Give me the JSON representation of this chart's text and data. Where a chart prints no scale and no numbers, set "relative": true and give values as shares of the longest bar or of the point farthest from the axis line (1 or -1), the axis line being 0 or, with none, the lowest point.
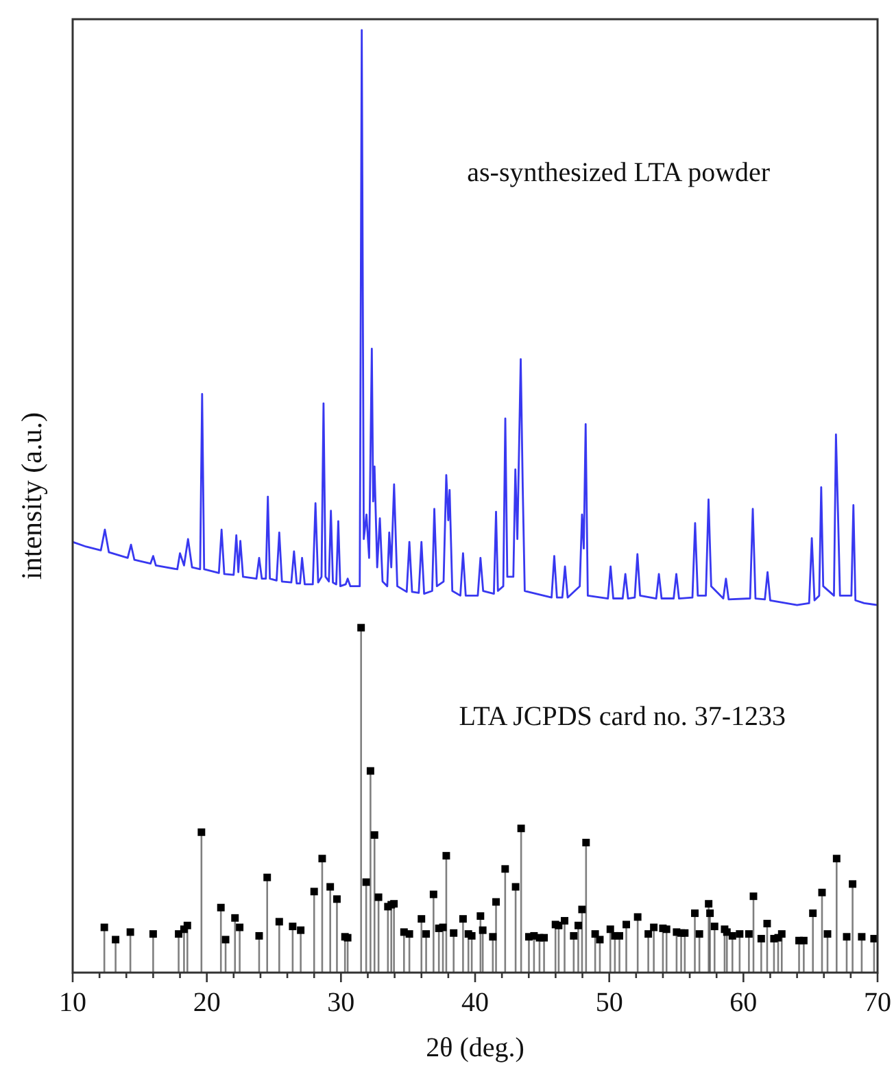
{
  "chart_data": {
    "type": "line",
    "relative": true,
    "xlabel": "2θ (deg.)",
    "ylabel": "intensity (a.u.)",
    "xlim": [
      10,
      70
    ],
    "tick_labels": "x",
    "annotations": [
      "as-synthesized LTA powder",
      "LTA JCPDS card no. 37-1233"
    ],
    "xticks": [
      10,
      {
        "value": 12,
        "label": null
      },
      {
        "value": 14,
        "label": null
      },
      {
        "value": 16,
        "label": null
      },
      {
        "value": 18,
        "label": null
      },
      20,
      {
        "value": 22,
        "label": null
      },
      {
        "value": 24,
        "label": null
      },
      {
        "value": 26,
        "label": null
      },
      {
        "value": 28,
        "label": null
      },
      30,
      {
        "value": 32,
        "label": null
      },
      {
        "value": 34,
        "label": null
      },
      {
        "value": 36,
        "label": null
      },
      {
        "value": 38,
        "label": null
      },
      40,
      {
        "value": 42,
        "label": null
      },
      {
        "value": 44,
        "label": null
      },
      {
        "value": 46,
        "label": null
      },
      {
        "value": 48,
        "label": null
      },
      50,
      {
        "value": 52,
        "label": null
      },
      {
        "value": 54,
        "label": null
      },
      {
        "value": 56,
        "label": null
      },
      {
        "value": 58,
        "label": null
      },
      60,
      {
        "value": 62,
        "label": null
      },
      {
        "value": 64,
        "label": null
      },
      {
        "value": 66,
        "label": null
      },
      {
        "value": 68,
        "label": null
      },
      70
    ],
    "series": [
      {
        "color": "#3838f0",
        "marker": "none",
        "x": [
          10,
          11,
          12.1,
          12.4,
          12.7,
          14.1,
          14.35,
          14.6,
          15.8,
          16.0,
          16.2,
          17.8,
          18.0,
          18.3,
          18.6,
          18.9,
          19.5,
          19.65,
          19.8,
          20.9,
          21.1,
          21.3,
          22.0,
          22.2,
          22.35,
          22.5,
          22.7,
          23.7,
          23.9,
          24.1,
          24.4,
          24.55,
          24.7,
          25.2,
          25.4,
          25.6,
          26.3,
          26.5,
          26.7,
          26.95,
          27.1,
          27.3,
          27.9,
          28.1,
          28.3,
          28.55,
          28.7,
          28.85,
          29.1,
          29.25,
          29.4,
          29.65,
          29.8,
          29.95,
          30.35,
          30.5,
          30.7,
          31.4,
          31.55,
          31.7,
          31.9,
          32.1,
          32.3,
          32.4,
          32.5,
          32.7,
          32.9,
          33.1,
          33.45,
          33.6,
          33.75,
          33.96,
          34.2,
          34.9,
          35.1,
          35.3,
          35.8,
          36.0,
          36.2,
          36.8,
          36.96,
          37.15,
          37.65,
          37.85,
          38.0,
          38.1,
          38.3,
          38.9,
          39.1,
          39.3,
          40.2,
          40.4,
          40.6,
          41.4,
          41.56,
          41.7,
          42.1,
          42.25,
          42.4,
          42.85,
          43.0,
          43.15,
          43.4,
          43.55,
          43.7,
          45.7,
          45.9,
          46.1,
          46.5,
          46.7,
          46.9,
          47.8,
          47.97,
          48.1,
          48.24,
          48.4,
          49.9,
          50.1,
          50.3,
          51.0,
          51.2,
          51.4,
          51.9,
          52.1,
          52.3,
          53.5,
          53.7,
          53.9,
          54.8,
          55.0,
          55.2,
          56.2,
          56.4,
          56.6,
          57.2,
          57.4,
          57.6,
          58.5,
          58.7,
          58.9,
          60.5,
          60.7,
          60.9,
          61.6,
          61.8,
          62.0,
          64.0,
          64.9,
          65.1,
          65.3,
          65.65,
          65.8,
          65.95,
          66.75,
          66.9,
          67.05,
          67.2,
          68.05,
          68.2,
          68.35,
          69.0,
          70
        ],
        "values": [
          0.457,
          0.452,
          0.448,
          0.47,
          0.446,
          0.44,
          0.454,
          0.438,
          0.434,
          0.442,
          0.432,
          0.428,
          0.445,
          0.432,
          0.46,
          0.43,
          0.428,
          0.614,
          0.428,
          0.424,
          0.47,
          0.423,
          0.422,
          0.464,
          0.425,
          0.458,
          0.42,
          0.418,
          0.44,
          0.418,
          0.418,
          0.505,
          0.418,
          0.416,
          0.467,
          0.415,
          0.414,
          0.447,
          0.413,
          0.413,
          0.44,
          0.412,
          0.412,
          0.498,
          0.414,
          0.42,
          0.604,
          0.42,
          0.415,
          0.49,
          0.414,
          0.412,
          0.479,
          0.41,
          0.412,
          0.418,
          0.41,
          0.41,
          1.0,
          0.46,
          0.486,
          0.44,
          0.662,
          0.5,
          0.537,
          0.43,
          0.482,
          0.415,
          0.41,
          0.467,
          0.43,
          0.518,
          0.41,
          0.404,
          0.457,
          0.404,
          0.403,
          0.457,
          0.402,
          0.405,
          0.492,
          0.41,
          0.415,
          0.528,
          0.48,
          0.512,
          0.405,
          0.4,
          0.445,
          0.4,
          0.4,
          0.44,
          0.405,
          0.402,
          0.489,
          0.405,
          0.41,
          0.588,
          0.42,
          0.42,
          0.534,
          0.46,
          0.651,
          0.515,
          0.405,
          0.398,
          0.442,
          0.398,
          0.398,
          0.431,
          0.398,
          0.41,
          0.486,
          0.45,
          0.582,
          0.4,
          0.397,
          0.431,
          0.397,
          0.397,
          0.423,
          0.397,
          0.398,
          0.444,
          0.4,
          0.397,
          0.423,
          0.397,
          0.397,
          0.423,
          0.397,
          0.398,
          0.477,
          0.4,
          0.4,
          0.502,
          0.41,
          0.397,
          0.418,
          0.396,
          0.397,
          0.492,
          0.397,
          0.396,
          0.425,
          0.395,
          0.39,
          0.392,
          0.461,
          0.395,
          0.4,
          0.515,
          0.41,
          0.4,
          0.571,
          0.489,
          0.4,
          0.4,
          0.496,
          0.395,
          0.392,
          0.39
        ]
      },
      {
        "type": "lollipop",
        "color": "#000000",
        "marker": "square",
        "x": [
          12.36,
          13.2,
          14.3,
          16.0,
          17.9,
          18.3,
          18.55,
          19.6,
          21.05,
          21.4,
          22.1,
          22.45,
          23.9,
          24.5,
          25.4,
          26.4,
          27.0,
          28.0,
          28.6,
          29.2,
          29.7,
          30.3,
          30.5,
          31.5,
          31.88,
          32.2,
          32.5,
          32.8,
          33.5,
          33.75,
          33.95,
          34.7,
          35.1,
          36.0,
          36.35,
          36.9,
          37.3,
          37.6,
          37.85,
          38.4,
          39.1,
          39.5,
          39.75,
          40.4,
          40.57,
          41.32,
          41.56,
          42.24,
          43.02,
          43.43,
          44.01,
          44.39,
          44.8,
          45.14,
          45.99,
          46.23,
          46.67,
          47.35,
          47.69,
          47.97,
          48.27,
          48.95,
          49.3,
          50.08,
          50.42,
          50.76,
          51.27,
          52.12,
          52.91,
          53.32,
          54.0,
          54.27,
          55.02,
          55.36,
          55.63,
          56.38,
          56.72,
          57.41,
          57.51,
          57.85,
          58.6,
          58.77,
          59.18,
          59.72,
          60.41,
          60.75,
          61.33,
          61.77,
          62.28,
          62.59,
          62.86,
          64.15,
          64.5,
          65.18,
          65.86,
          66.27,
          66.95,
          67.7,
          68.14,
          68.82,
          69.74
        ],
        "values": [
          0.048,
          0.035,
          0.043,
          0.041,
          0.041,
          0.046,
          0.05,
          0.149,
          0.069,
          0.035,
          0.058,
          0.048,
          0.039,
          0.101,
          0.054,
          0.049,
          0.045,
          0.086,
          0.121,
          0.091,
          0.078,
          0.038,
          0.037,
          0.366,
          0.096,
          0.214,
          0.146,
          0.08,
          0.07,
          0.072,
          0.073,
          0.043,
          0.041,
          0.057,
          0.041,
          0.083,
          0.047,
          0.048,
          0.124,
          0.042,
          0.057,
          0.041,
          0.039,
          0.06,
          0.045,
          0.038,
          0.075,
          0.11,
          0.091,
          0.153,
          0.038,
          0.039,
          0.037,
          0.037,
          0.051,
          0.05,
          0.055,
          0.039,
          0.05,
          0.067,
          0.138,
          0.041,
          0.035,
          0.046,
          0.039,
          0.039,
          0.051,
          0.059,
          0.041,
          0.048,
          0.047,
          0.046,
          0.043,
          0.042,
          0.042,
          0.063,
          0.041,
          0.073,
          0.063,
          0.049,
          0.046,
          0.043,
          0.039,
          0.041,
          0.041,
          0.081,
          0.036,
          0.052,
          0.036,
          0.037,
          0.041,
          0.034,
          0.034,
          0.063,
          0.085,
          0.041,
          0.121,
          0.038,
          0.094,
          0.038,
          0.036
        ]
      }
    ]
  }
}
